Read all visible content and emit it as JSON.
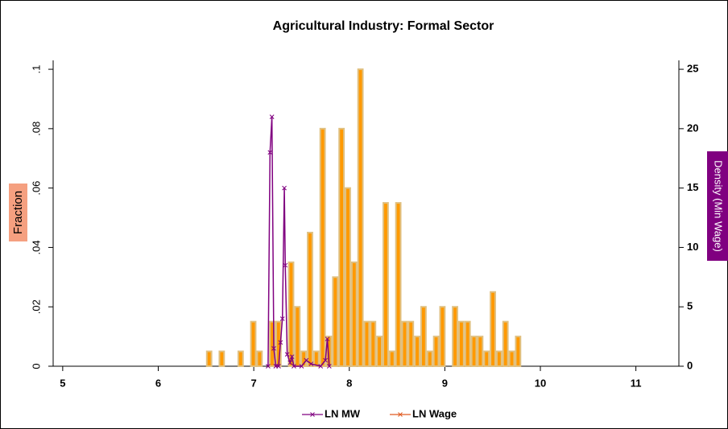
{
  "chart_data": {
    "type": "histogram",
    "title": "Agricultural Industry: Formal Sector",
    "ylabel": "Fraction",
    "y2label": "Density (Min Wage)",
    "bins": [
      6.5,
      6.566,
      6.632,
      6.698,
      6.764,
      6.83,
      6.896,
      6.962,
      7.028,
      7.094,
      7.16,
      7.226,
      7.292,
      7.358,
      7.424,
      7.49,
      7.556,
      7.622,
      7.688,
      7.754,
      7.82,
      7.886,
      7.952,
      8.018,
      8.084,
      8.15,
      8.216,
      8.282,
      8.348,
      8.414,
      8.48,
      8.546,
      8.612,
      8.678,
      8.744,
      8.81,
      8.876,
      8.942,
      9.008,
      9.074,
      9.14,
      9.206,
      9.272,
      9.338,
      9.404,
      9.47,
      9.536,
      9.602,
      9.668,
      9.734,
      9.8
    ],
    "series": [
      {
        "name": "LN MW",
        "type": "line",
        "axis": "y2",
        "color": "#800080",
        "x": [
          7.15,
          7.17,
          7.19,
          7.21,
          7.23,
          7.26,
          7.28,
          7.3,
          7.32,
          7.33,
          7.35,
          7.38,
          7.4,
          7.42,
          7.5,
          7.55,
          7.6,
          7.7,
          7.75,
          7.77,
          7.79
        ],
        "values": [
          0,
          18,
          21,
          1.5,
          0,
          0,
          2,
          4,
          15,
          8.5,
          1,
          0.3,
          0.8,
          0,
          0,
          0.5,
          0.2,
          0,
          0.5,
          2.3,
          0
        ]
      },
      {
        "name": "LN Wage",
        "type": "histogram",
        "color": "#ff9900",
        "line_color": "#e05a20",
        "values": [
          0.005,
          0,
          0.005,
          0,
          0,
          0.005,
          0,
          0.015,
          0.005,
          0,
          0.015,
          0.015,
          0,
          0.035,
          0.02,
          0.005,
          0.045,
          0.005,
          0.08,
          0.01,
          0.03,
          0.08,
          0.06,
          0.035,
          0.1,
          0.015,
          0.015,
          0.01,
          0.055,
          0.005,
          0.055,
          0.015,
          0.015,
          0.01,
          0.02,
          0.005,
          0.01,
          0.02,
          0,
          0.02,
          0.015,
          0.015,
          0.01,
          0.01,
          0.005,
          0.025,
          0.005,
          0.015,
          0.005,
          0.01
        ]
      }
    ],
    "xlim": [
      4.9,
      11.45
    ],
    "ylim": [
      0,
      0.103
    ],
    "y2lim": [
      0,
      25.75
    ],
    "xticks": [
      5,
      6,
      7,
      8,
      9,
      10,
      11
    ],
    "yticks": [
      0,
      {
        "value": 0.02,
        "label": ".02"
      },
      {
        "value": 0.04,
        "label": ".04"
      },
      {
        "value": 0.06,
        "label": ".06"
      },
      {
        "value": 0.08,
        "label": ".08"
      },
      {
        "value": 0.1,
        "label": ".1"
      }
    ],
    "y2ticks": [
      0,
      5,
      10,
      15,
      20,
      25
    ]
  }
}
